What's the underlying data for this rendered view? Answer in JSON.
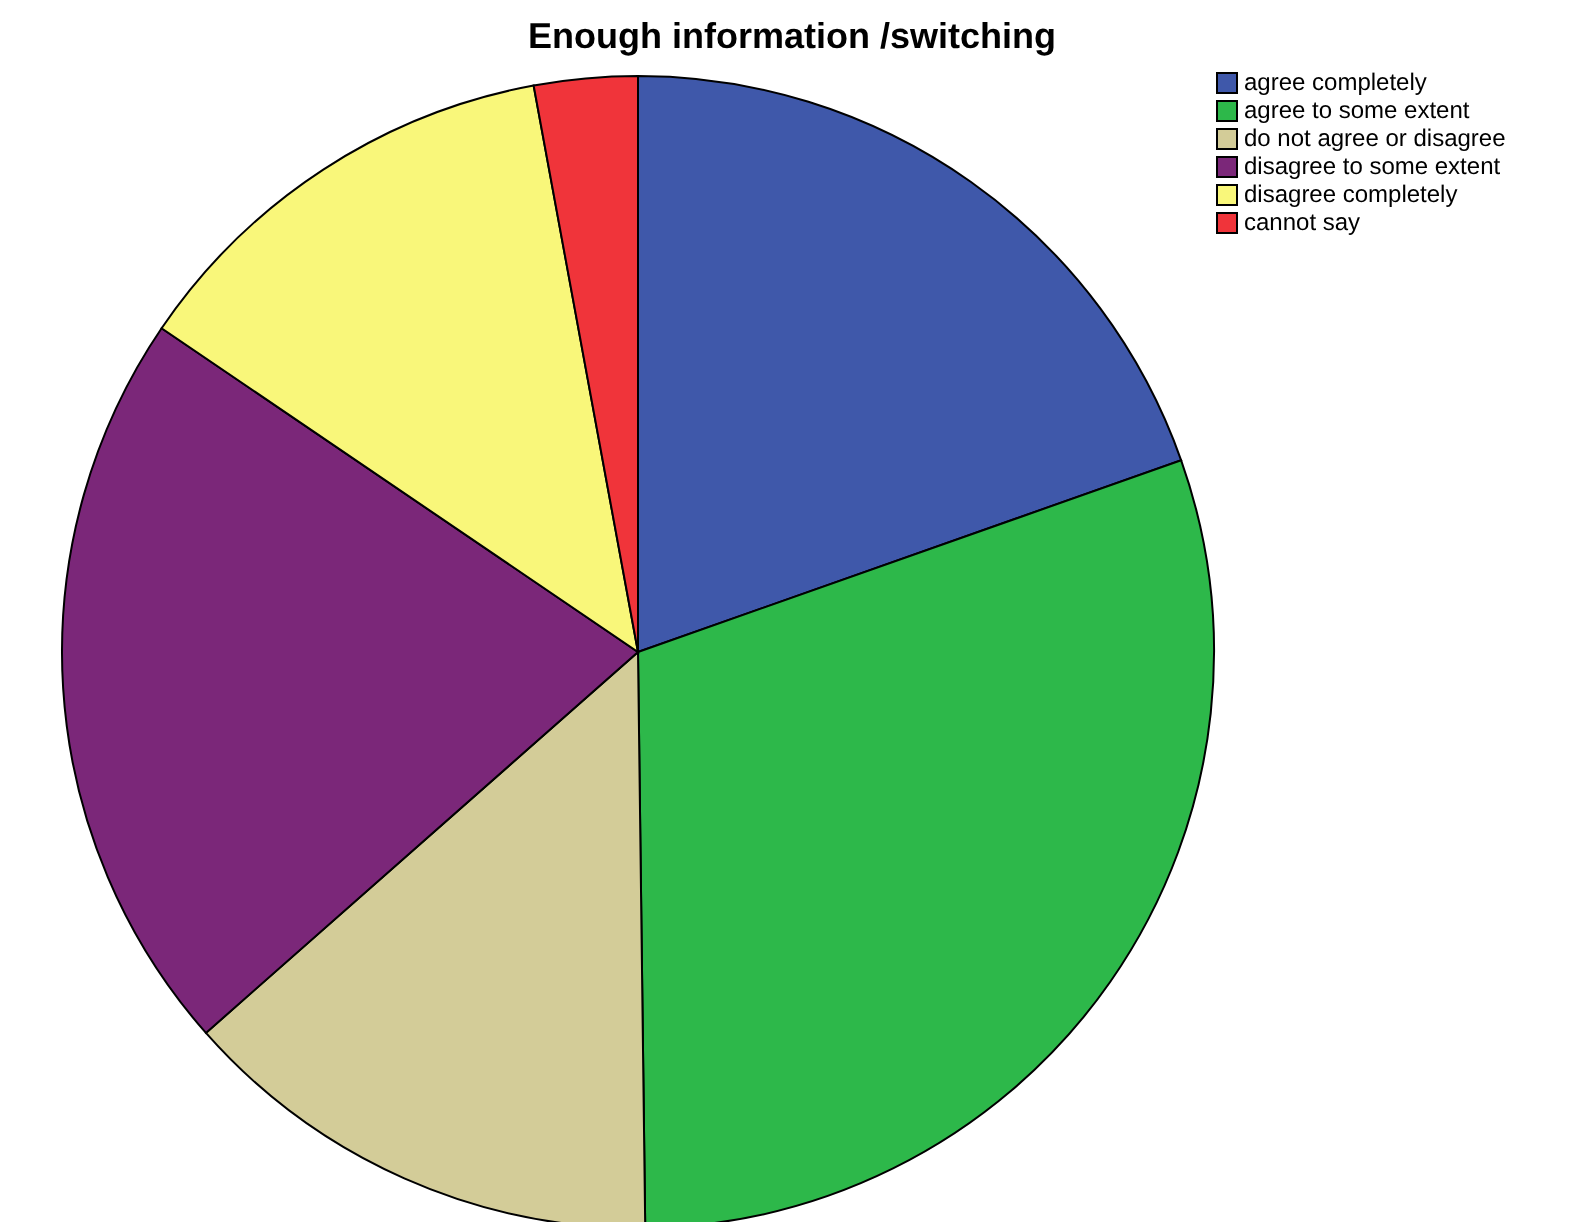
{
  "chart_data": {
    "type": "pie",
    "title": "Enough information /switching",
    "categories": [
      "agree completely",
      "agree to some extent",
      "do not agree or disagree",
      "disagree to some extent",
      "disagree completely",
      "cannot say"
    ],
    "values": [
      19.6,
      30.2,
      13.7,
      21.0,
      12.6,
      2.9
    ],
    "colors": [
      "#3f58aa",
      "#2db84a",
      "#d3cc98",
      "#7b2779",
      "#f9f77a",
      "#f0343a"
    ],
    "legend": "top right"
  }
}
